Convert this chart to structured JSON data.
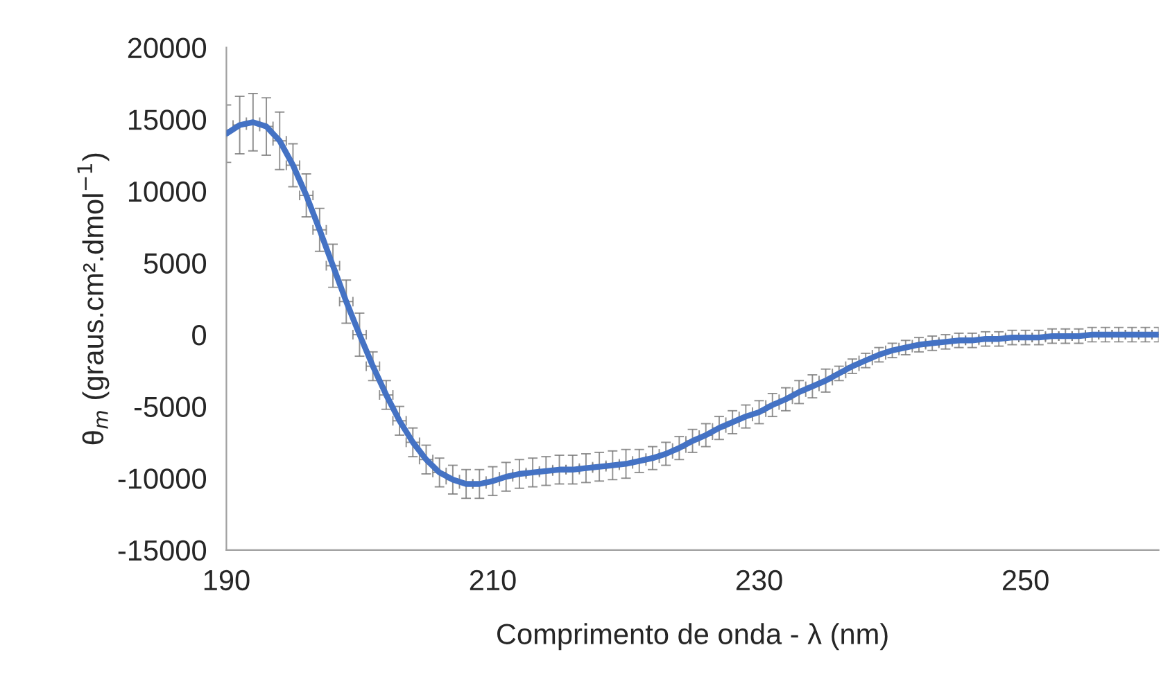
{
  "chart_data": {
    "type": "line",
    "xlabel": "Comprimento de onda - λ (nm)",
    "ylabel": "θ$_{m}$ (graus.cm².dmol$^{−1}$)",
    "x": [
      190,
      191,
      192,
      193,
      194,
      195,
      196,
      197,
      198,
      199,
      200,
      201,
      202,
      203,
      204,
      205,
      206,
      207,
      208,
      209,
      210,
      211,
      212,
      213,
      214,
      215,
      216,
      217,
      218,
      219,
      220,
      221,
      222,
      223,
      224,
      225,
      226,
      227,
      228,
      229,
      230,
      231,
      232,
      233,
      234,
      235,
      236,
      237,
      238,
      239,
      240,
      241,
      242,
      243,
      244,
      245,
      246,
      247,
      248,
      249,
      250,
      251,
      252,
      253,
      254,
      255,
      256,
      257,
      258,
      259,
      260
    ],
    "series": [
      {
        "color": "#4472c4",
        "values": [
          14000,
          14600,
          14800,
          14500,
          13500,
          11800,
          9700,
          7300,
          4800,
          2300,
          0,
          -2200,
          -4200,
          -6000,
          -7500,
          -8700,
          -9600,
          -10100,
          -10400,
          -10400,
          -10200,
          -9900,
          -9700,
          -9600,
          -9500,
          -9400,
          -9400,
          -9300,
          -9200,
          -9100,
          -9000,
          -8800,
          -8600,
          -8300,
          -7900,
          -7400,
          -7000,
          -6500,
          -6100,
          -5700,
          -5400,
          -4900,
          -4500,
          -4000,
          -3600,
          -3200,
          -2700,
          -2200,
          -1800,
          -1400,
          -1100,
          -900,
          -700,
          -600,
          -500,
          -400,
          -400,
          -300,
          -300,
          -200,
          -200,
          -200,
          -100,
          -100,
          -100,
          0,
          0,
          0,
          0,
          0,
          0
        ],
        "errors": [
          2000,
          2000,
          2000,
          2000,
          2000,
          1500,
          1500,
          1500,
          1500,
          1500,
          1500,
          1000,
          1000,
          1000,
          1000,
          1000,
          1000,
          1000,
          1000,
          1000,
          1000,
          1000,
          1000,
          1000,
          1000,
          1000,
          1000,
          1000,
          1000,
          1000,
          1000,
          800,
          800,
          800,
          800,
          800,
          800,
          800,
          800,
          800,
          800,
          800,
          800,
          800,
          800,
          800,
          500,
          500,
          500,
          500,
          500,
          500,
          500,
          500,
          500,
          500,
          500,
          500,
          500,
          500,
          500,
          500,
          500,
          500,
          500,
          500,
          500,
          500,
          500,
          500,
          500
        ],
        "xerrors": [
          null,
          0.5,
          0.5,
          0.5,
          0.5,
          0.5,
          0.5,
          0.5,
          0.5,
          0.5,
          0.5,
          0.5,
          0.5,
          0.5,
          0.5,
          0.5,
          0.5,
          0.5,
          0.5,
          0.5,
          0.5,
          0.5,
          0.5,
          0.5,
          0.5,
          0.5,
          0.5,
          0.5,
          0.5,
          0.5,
          0.5,
          0.5,
          0.5,
          0.5,
          0.5,
          0.5,
          0.5,
          0.5,
          0.5,
          0.5,
          0.5,
          0.5,
          0.5,
          0.5,
          0.5,
          0.5,
          0.5,
          0.5,
          0.5,
          0.5,
          0.5,
          0.5,
          0.5,
          0.5,
          0.5,
          0.5,
          0.5,
          0.5,
          0.5,
          0.5,
          0.5,
          0.5,
          0.5,
          0.5,
          0.5,
          0.5,
          0.5,
          0.5,
          0.5,
          0.5,
          0.5
        ]
      }
    ],
    "xlim": [
      190,
      260
    ],
    "xticks": [
      190,
      210,
      230,
      250
    ],
    "ylim": [
      -15000,
      20000
    ],
    "yticks": [
      -15000,
      -10000,
      -5000,
      0,
      5000,
      10000,
      15000,
      20000
    ],
    "grid": false,
    "legend": false,
    "marker": "none",
    "line_style": "solid"
  }
}
